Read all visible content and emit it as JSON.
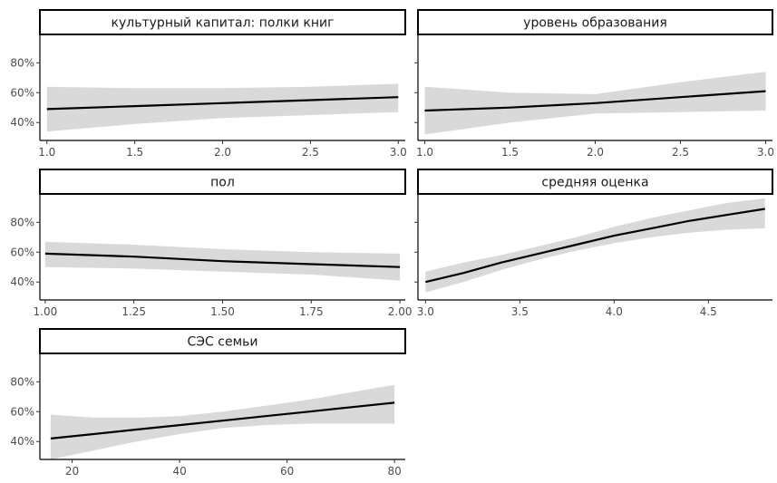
{
  "chart_data": [
    {
      "type": "line",
      "title": "культурный капитал: полки книг",
      "ylim": [
        0.28,
        0.99
      ],
      "xlim": [
        0.96,
        3.04
      ],
      "x_ticks": [
        {
          "value": 1.0,
          "label": "1.0"
        },
        {
          "value": 1.5,
          "label": "1.5"
        },
        {
          "value": 2.0,
          "label": "2.0"
        },
        {
          "value": 2.5,
          "label": "2.5"
        },
        {
          "value": 3.0,
          "label": "3.0"
        }
      ],
      "y_ticks": [
        {
          "value": 0.4,
          "label": "40%"
        },
        {
          "value": 0.6,
          "label": "60%"
        },
        {
          "value": 0.8,
          "label": "80%"
        }
      ],
      "show_y_labels": true,
      "series": [
        {
          "x": [
            1.0,
            1.5,
            2.0,
            2.5,
            3.0
          ],
          "y": [
            0.49,
            0.51,
            0.53,
            0.55,
            0.57
          ],
          "lower": [
            0.34,
            0.39,
            0.43,
            0.45,
            0.47
          ],
          "upper": [
            0.64,
            0.63,
            0.63,
            0.64,
            0.66
          ]
        }
      ]
    },
    {
      "type": "line",
      "title": "уровень образования",
      "ylim": [
        0.28,
        0.99
      ],
      "xlim": [
        0.96,
        3.04
      ],
      "x_ticks": [
        {
          "value": 1.0,
          "label": "1.0"
        },
        {
          "value": 1.5,
          "label": "1.5"
        },
        {
          "value": 2.0,
          "label": "2.0"
        },
        {
          "value": 2.5,
          "label": "2.5"
        },
        {
          "value": 3.0,
          "label": "3.0"
        }
      ],
      "y_ticks": [
        {
          "value": 0.4,
          "label": ""
        },
        {
          "value": 0.6,
          "label": ""
        },
        {
          "value": 0.8,
          "label": ""
        }
      ],
      "show_y_labels": false,
      "series": [
        {
          "x": [
            1.0,
            1.5,
            2.0,
            2.5,
            3.0
          ],
          "y": [
            0.48,
            0.5,
            0.53,
            0.57,
            0.61
          ],
          "lower": [
            0.32,
            0.4,
            0.46,
            0.47,
            0.48
          ],
          "upper": [
            0.64,
            0.6,
            0.59,
            0.67,
            0.74
          ]
        }
      ]
    },
    {
      "type": "line",
      "title": "пол",
      "ylim": [
        0.28,
        0.99
      ],
      "xlim": [
        0.985,
        2.015
      ],
      "x_ticks": [
        {
          "value": 1.0,
          "label": "1.00"
        },
        {
          "value": 1.25,
          "label": "1.25"
        },
        {
          "value": 1.5,
          "label": "1.50"
        },
        {
          "value": 1.75,
          "label": "1.75"
        },
        {
          "value": 2.0,
          "label": "2.00"
        }
      ],
      "y_ticks": [
        {
          "value": 0.4,
          "label": "40%"
        },
        {
          "value": 0.6,
          "label": "60%"
        },
        {
          "value": 0.8,
          "label": "80%"
        }
      ],
      "show_y_labels": true,
      "series": [
        {
          "x": [
            1.0,
            1.25,
            1.5,
            1.75,
            2.0
          ],
          "y": [
            0.59,
            0.57,
            0.54,
            0.52,
            0.5
          ],
          "lower": [
            0.5,
            0.49,
            0.47,
            0.45,
            0.41
          ],
          "upper": [
            0.67,
            0.65,
            0.62,
            0.6,
            0.59
          ]
        }
      ]
    },
    {
      "type": "line",
      "title": "средняя оценка",
      "ylim": [
        0.28,
        0.99
      ],
      "xlim": [
        2.96,
        4.84
      ],
      "x_ticks": [
        {
          "value": 3.0,
          "label": "3.0"
        },
        {
          "value": 3.5,
          "label": "3.5"
        },
        {
          "value": 4.0,
          "label": "4.0"
        },
        {
          "value": 4.5,
          "label": "4.5"
        }
      ],
      "y_ticks": [
        {
          "value": 0.4,
          "label": ""
        },
        {
          "value": 0.6,
          "label": ""
        },
        {
          "value": 0.8,
          "label": ""
        }
      ],
      "show_y_labels": false,
      "series": [
        {
          "x": [
            3.0,
            3.2,
            3.4,
            3.6,
            3.8,
            4.0,
            4.2,
            4.4,
            4.6,
            4.8
          ],
          "y": [
            0.4,
            0.46,
            0.53,
            0.59,
            0.65,
            0.71,
            0.76,
            0.81,
            0.85,
            0.89
          ],
          "lower": [
            0.33,
            0.4,
            0.48,
            0.55,
            0.61,
            0.66,
            0.7,
            0.73,
            0.75,
            0.76
          ],
          "upper": [
            0.47,
            0.53,
            0.58,
            0.64,
            0.7,
            0.77,
            0.83,
            0.88,
            0.93,
            0.96
          ]
        }
      ]
    },
    {
      "type": "line",
      "title": "СЭС семьи",
      "ylim": [
        0.28,
        0.99
      ],
      "xlim": [
        14,
        82
      ],
      "x_ticks": [
        {
          "value": 20,
          "label": "20"
        },
        {
          "value": 40,
          "label": "40"
        },
        {
          "value": 60,
          "label": "60"
        },
        {
          "value": 80,
          "label": "80"
        }
      ],
      "y_ticks": [
        {
          "value": 0.4,
          "label": "40%"
        },
        {
          "value": 0.6,
          "label": "60%"
        },
        {
          "value": 0.8,
          "label": "80%"
        }
      ],
      "show_y_labels": true,
      "series": [
        {
          "x": [
            16,
            24,
            32,
            40,
            48,
            56,
            64,
            72,
            80
          ],
          "y": [
            0.42,
            0.45,
            0.48,
            0.51,
            0.54,
            0.57,
            0.6,
            0.63,
            0.66
          ],
          "lower": [
            0.28,
            0.34,
            0.4,
            0.45,
            0.49,
            0.51,
            0.52,
            0.52,
            0.52
          ],
          "upper": [
            0.58,
            0.56,
            0.56,
            0.57,
            0.6,
            0.64,
            0.68,
            0.73,
            0.78
          ]
        }
      ]
    }
  ]
}
